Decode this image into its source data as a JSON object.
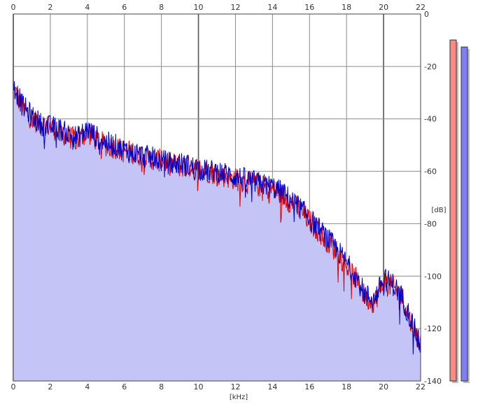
{
  "chart_data": {
    "type": "area",
    "xlabel": "[kHz]",
    "ylabel": "[dB]",
    "xlim": [
      0,
      22
    ],
    "ylim": [
      -140,
      0
    ],
    "x_ticks": [
      "0",
      "2",
      "4",
      "6",
      "8",
      "10",
      "12",
      "14",
      "16",
      "18",
      "20",
      "22"
    ],
    "y_ticks": [
      "0",
      "-20",
      "-40",
      "-60",
      "-80",
      "-100",
      "-120",
      "-140"
    ],
    "grid": true,
    "colors": {
      "fill": "#c4c4f7",
      "left_channel": "#e00000",
      "right_channel": "#0000c8",
      "left_meter": "#f98a86",
      "right_meter": "#7f7ff1"
    },
    "series": [
      {
        "x": [
          0,
          0.5,
          1,
          1.5,
          2,
          2.5,
          3,
          3.5,
          4,
          4.5,
          5,
          5.5,
          6,
          6.5,
          7,
          7.5,
          8,
          8.5,
          9,
          9.5,
          10,
          10.5,
          11,
          11.5,
          12,
          12.5,
          13,
          13.5,
          14,
          14.5,
          15,
          15.5,
          16,
          16.5,
          17,
          17.5,
          18,
          18.5,
          19,
          19.5,
          20,
          20.5,
          21,
          21.5,
          22
        ],
        "values": [
          -28,
          -36,
          -40,
          -42,
          -43,
          -45,
          -47,
          -48,
          -45,
          -48,
          -50,
          -51,
          -52,
          -53,
          -54,
          -55,
          -56,
          -57,
          -58,
          -58,
          -59,
          -60,
          -61,
          -62,
          -63,
          -64,
          -65,
          -66,
          -67,
          -69,
          -72,
          -75,
          -79,
          -83,
          -87,
          -91,
          -96,
          -101,
          -108,
          -110,
          -102,
          -104,
          -108,
          -118,
          -126
        ]
      },
      {
        "x": [
          0,
          0.5,
          1,
          1.5,
          2,
          2.5,
          3,
          3.5,
          4,
          4.5,
          5,
          5.5,
          6,
          6.5,
          7,
          7.5,
          8,
          8.5,
          9,
          9.5,
          10,
          10.5,
          11,
          11.5,
          12,
          12.5,
          13,
          13.5,
          14,
          14.5,
          15,
          15.5,
          16,
          16.5,
          17,
          17.5,
          18,
          18.5,
          19,
          19.5,
          20,
          20.5,
          21,
          21.5,
          22
        ],
        "values": [
          -27,
          -35,
          -39,
          -42,
          -43,
          -44,
          -46,
          -47,
          -44,
          -47,
          -49,
          -50,
          -52,
          -53,
          -54,
          -55,
          -56,
          -57,
          -57,
          -58,
          -59,
          -60,
          -60,
          -61,
          -62,
          -63,
          -64,
          -65,
          -66,
          -68,
          -71,
          -74,
          -78,
          -82,
          -86,
          -90,
          -95,
          -100,
          -107,
          -109,
          -101,
          -103,
          -108,
          -117,
          -127
        ]
      }
    ]
  },
  "meters": {
    "left_level": 0.03,
    "right_level": 0.05
  }
}
